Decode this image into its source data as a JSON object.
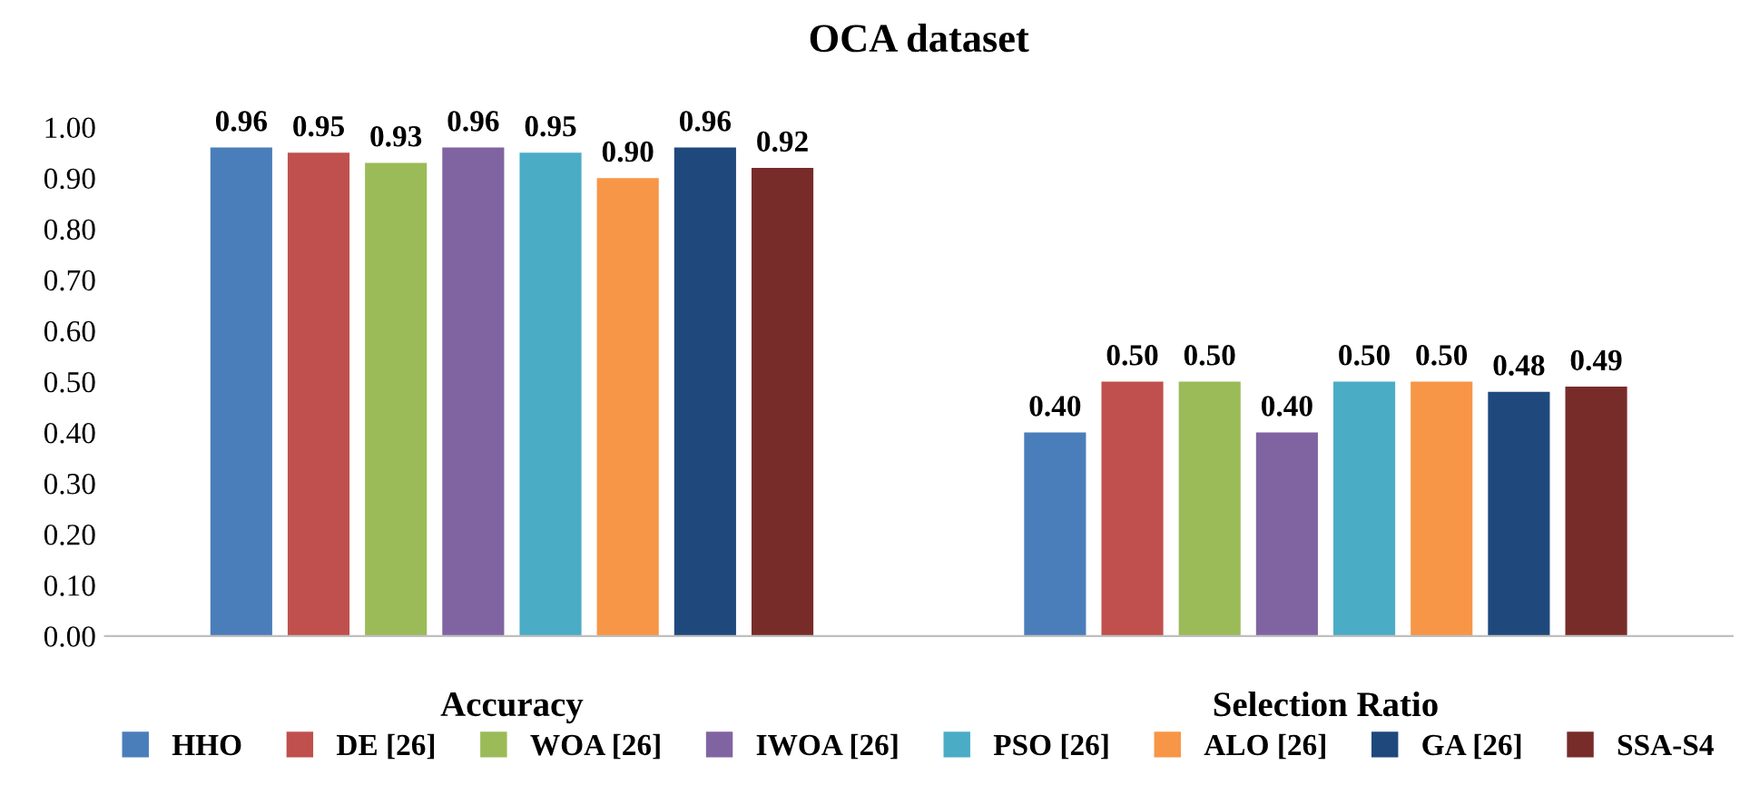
{
  "chart_data": {
    "type": "bar",
    "title": "OCA dataset",
    "categories": [
      "Accuracy",
      "Selection Ratio"
    ],
    "series": [
      {
        "name": "HHO",
        "color": "#4a7ebb",
        "values": [
          0.96,
          0.4
        ],
        "value_labels": [
          "0.96",
          "0.40"
        ]
      },
      {
        "name": "DE [26]",
        "color": "#c0504d",
        "values": [
          0.95,
          0.5
        ],
        "value_labels": [
          "0.95",
          "0.50"
        ]
      },
      {
        "name": "WOA [26]",
        "color": "#9bbb59",
        "values": [
          0.93,
          0.5
        ],
        "value_labels": [
          "0.93",
          "0.50"
        ]
      },
      {
        "name": "IWOA [26]",
        "color": "#8064a2",
        "values": [
          0.96,
          0.4
        ],
        "value_labels": [
          "0.96",
          "0.40"
        ]
      },
      {
        "name": "PSO [26]",
        "color": "#4bacc6",
        "values": [
          0.95,
          0.5
        ],
        "value_labels": [
          "0.95",
          "0.50"
        ]
      },
      {
        "name": "ALO [26]",
        "color": "#f79646",
        "values": [
          0.9,
          0.5
        ],
        "value_labels": [
          "0.90",
          "0.50"
        ]
      },
      {
        "name": "GA [26]",
        "color": "#1f497d",
        "values": [
          0.96,
          0.48
        ],
        "value_labels": [
          "0.96",
          "0.48"
        ]
      },
      {
        "name": "SSA-S4",
        "color": "#772c2a",
        "values": [
          0.92,
          0.49
        ],
        "value_labels": [
          "0.92",
          "0.49"
        ]
      }
    ],
    "ylim": [
      0,
      1.0
    ],
    "yticks": [
      {
        "value": 0,
        "label": "0.00"
      },
      {
        "value": 0.1,
        "label": "0.10"
      },
      {
        "value": 0.2,
        "label": "0.20"
      },
      {
        "value": 0.3,
        "label": "0.30"
      },
      {
        "value": 0.4,
        "label": "0.40"
      },
      {
        "value": 0.5,
        "label": "0.50"
      },
      {
        "value": 0.6,
        "label": "0.60"
      },
      {
        "value": 0.7,
        "label": "0.70"
      },
      {
        "value": 0.8,
        "label": "0.80"
      },
      {
        "value": 0.9,
        "label": "0.90"
      },
      {
        "value": 1.0,
        "label": "1.00"
      }
    ],
    "legend": "bottom",
    "grid": false
  }
}
